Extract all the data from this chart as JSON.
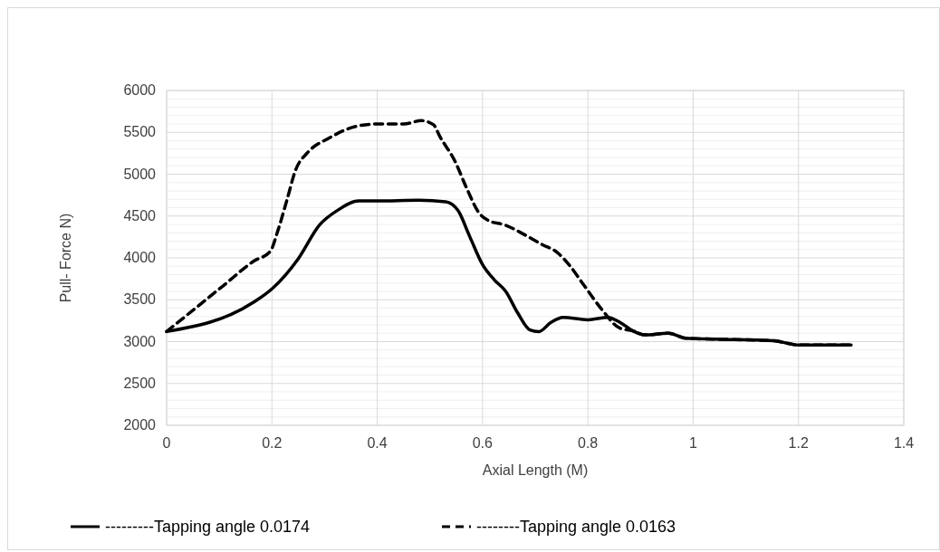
{
  "chart_data": {
    "type": "line",
    "xlabel": "Axial  Length (M)",
    "ylabel": "Pull- Force N)",
    "xlim": [
      0,
      1.4
    ],
    "xticks": [
      0,
      0.2,
      0.4,
      0.6,
      0.8,
      1,
      1.2,
      1.4
    ],
    "ylim": [
      2000,
      6000
    ],
    "yticks": [
      2000,
      2500,
      3000,
      3500,
      4000,
      4500,
      5000,
      5500,
      6000
    ],
    "grid": true,
    "legend": "bottom",
    "marker": "none",
    "series": [
      {
        "name": "---------Tapping angle 0.0174",
        "color": "#000000",
        "line_style": "solid",
        "x": [
          0,
          0.165,
          0.2,
          0.25,
          0.29,
          0.325,
          0.365,
          0.4,
          0.479,
          0.53,
          0.553,
          0.576,
          0.6,
          0.622,
          0.644,
          0.667,
          0.69,
          0.707,
          0.73,
          0.753,
          0.8,
          0.838,
          0.861,
          0.885,
          0.908,
          0.953,
          0.987,
          1.039,
          1.153,
          1.2,
          1.3
        ],
        "values": [
          3120,
          3470,
          3630,
          3990,
          4390,
          4570,
          4680,
          4680,
          4690,
          4670,
          4570,
          4250,
          3920,
          3740,
          3600,
          3340,
          3140,
          3120,
          3230,
          3290,
          3260,
          3290,
          3230,
          3130,
          3080,
          3100,
          3040,
          3030,
          3010,
          2960,
          2960
        ]
      },
      {
        "name": "--------Tapping angle 0.0163",
        "color": "#000000",
        "line_style": "dashed",
        "x": [
          0,
          0.051,
          0.108,
          0.165,
          0.197,
          0.211,
          0.228,
          0.245,
          0.268,
          0.308,
          0.359,
          0.4,
          0.45,
          0.484,
          0.507,
          0.519,
          0.548,
          0.57,
          0.593,
          0.61,
          0.644,
          0.679,
          0.713,
          0.741,
          0.764,
          0.793,
          0.827,
          0.861,
          0.885,
          0.908,
          0.953,
          0.987,
          1.039,
          1.153,
          1.2,
          1.3
        ],
        "values": [
          3120,
          3380,
          3670,
          3960,
          4080,
          4320,
          4680,
          5050,
          5260,
          5430,
          5570,
          5600,
          5600,
          5640,
          5590,
          5450,
          5150,
          4830,
          4540,
          4450,
          4390,
          4280,
          4160,
          4070,
          3920,
          3670,
          3380,
          3160,
          3130,
          3080,
          3100,
          3040,
          3030,
          3010,
          2960,
          2960
        ]
      }
    ]
  }
}
